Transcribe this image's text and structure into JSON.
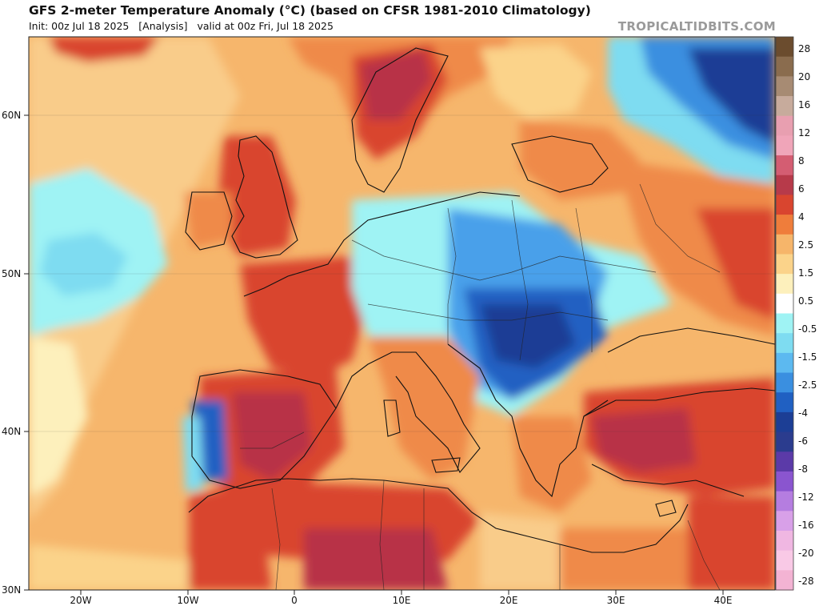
{
  "header": {
    "title": "GFS 2-meter Temperature Anomaly (°C) (based on CFSR 1981-2010 Climatology)",
    "subtitle": "Init: 00z Jul 18 2025   [Analysis]   valid at 00z Fri, Jul 18 2025",
    "brand": "TROPICALTIDBITS.COM"
  },
  "axes": {
    "lat_labels": [
      "60N",
      "50N",
      "40N",
      "30N"
    ],
    "lon_labels": [
      "20W",
      "10W",
      "0",
      "10E",
      "20E",
      "30E",
      "40E"
    ]
  },
  "colorbar": {
    "labels": [
      "28",
      "20",
      "16",
      "12",
      "8",
      "6",
      "4",
      "2.5",
      "1.5",
      "0.5",
      "-0.5",
      "-1.5",
      "-2.5",
      "-4",
      "-6",
      "-8",
      "-12",
      "-16",
      "-20",
      "-28"
    ],
    "colors": [
      "#6b4c2e",
      "#8a6c4e",
      "#a78b73",
      "#c7ab9c",
      "#e89fb0",
      "#f0a5b9",
      "#d45d72",
      "#b73a4a",
      "#d9452f",
      "#ef7d3b",
      "#f6b56a",
      "#fbd38a",
      "#fdf0bc",
      "#ffffff",
      "#9ff3f4",
      "#7edcf1",
      "#5cb9f0",
      "#3a8fe0",
      "#2060c2",
      "#1c3e95",
      "#2b3c8e",
      "#5b3aa8",
      "#8a55cf",
      "#b57de0",
      "#d8a0e8",
      "#f0b7e2",
      "#f9c9e6",
      "#f3b3d3"
    ]
  },
  "palette": {
    "background": "#f6b66c",
    "ocean_warm": "#f9cc8a",
    "warm": "#ef8a4a",
    "hot": "#d9452f",
    "very_hot": "#b83247",
    "cool": "#9ff3f4",
    "cold": "#4aa0ea",
    "very_cold": "#2060c2",
    "deep_cold": "#1c3e95",
    "neutral": "#fdf0bc",
    "near_zero": "#ffffff"
  }
}
